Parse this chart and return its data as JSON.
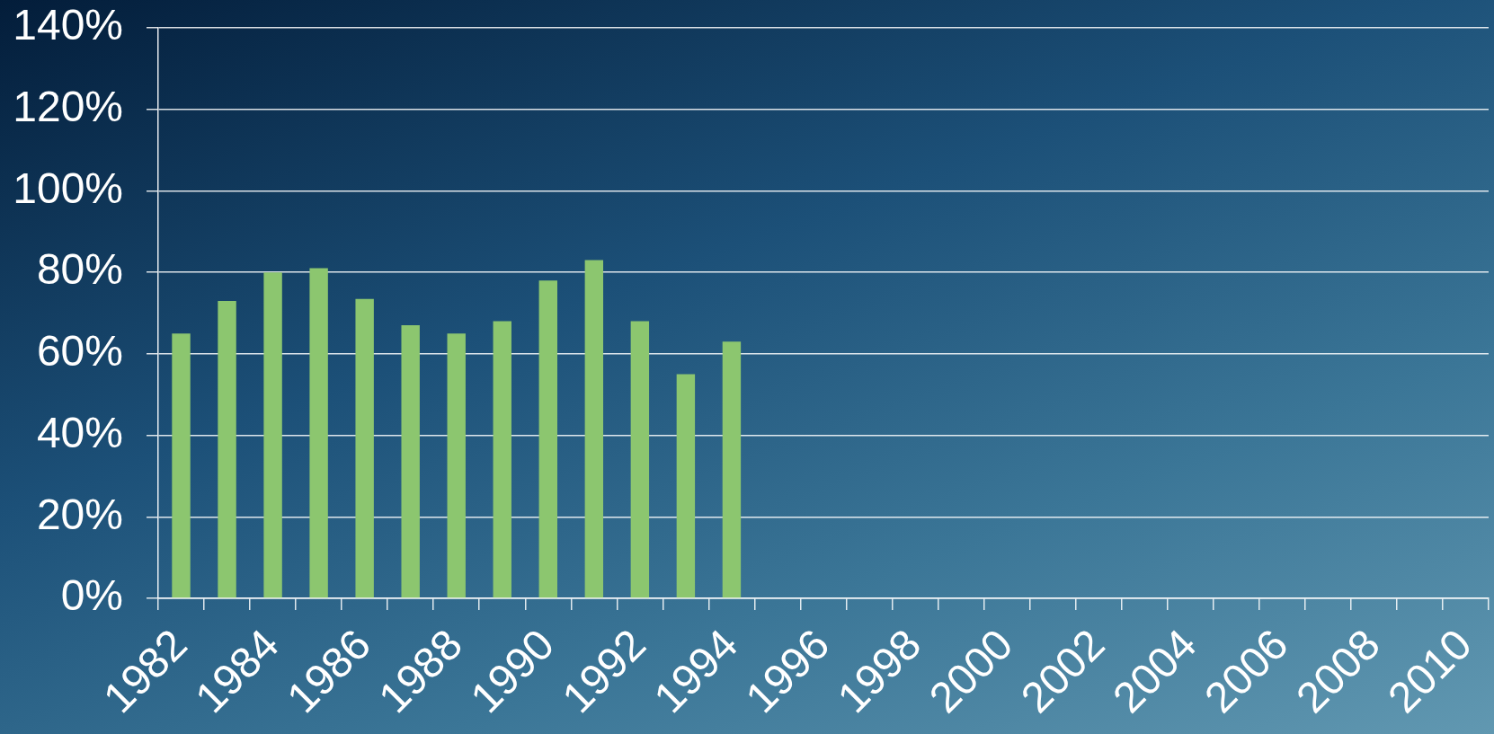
{
  "chart_data": {
    "type": "bar",
    "categories": [
      "1982",
      null,
      "1984",
      null,
      "1986",
      null,
      "1988",
      null,
      "1990",
      null,
      "1992",
      null,
      "1994",
      null,
      "1996",
      null,
      "1998",
      null,
      "2000",
      null,
      "2002",
      null,
      "2004",
      null,
      "2006",
      null,
      "2008",
      null,
      "2010"
    ],
    "values": [
      65,
      73,
      80,
      81,
      73.5,
      67,
      65,
      68,
      78,
      83,
      68,
      55,
      63,
      null,
      null,
      null,
      null,
      null,
      null,
      null,
      null,
      null,
      null,
      null,
      null,
      null,
      null,
      null,
      null
    ],
    "color": "#8cc66f",
    "ylim": [
      0,
      140
    ],
    "yticks": [
      {
        "value": 0,
        "label": "0%"
      },
      {
        "value": 20,
        "label": "20%"
      },
      {
        "value": 40,
        "label": "40%"
      },
      {
        "value": 60,
        "label": "60%"
      },
      {
        "value": 80,
        "label": "80%"
      },
      {
        "value": 100,
        "label": "100%"
      },
      {
        "value": 120,
        "label": "120%"
      },
      {
        "value": 140,
        "label": "140%"
      }
    ],
    "grid": "y"
  }
}
